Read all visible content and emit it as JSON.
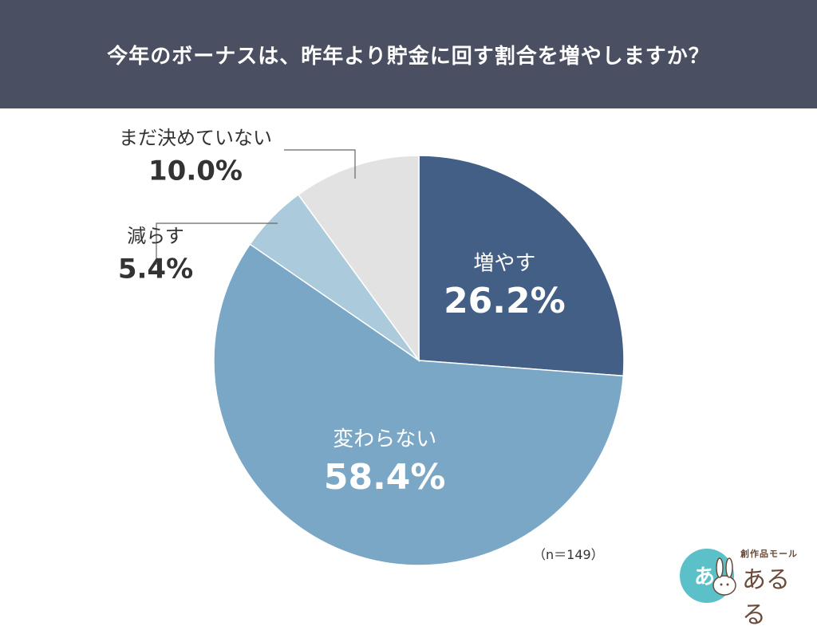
{
  "title": "今年のボーナスは、昨年より貯金に回す割合を増やしますか？",
  "sample_size": "（n＝149）",
  "chart_data": {
    "type": "pie",
    "title": "今年のボーナスは、昨年より貯金に回す割合を増やしますか？",
    "start": "12 o'clock",
    "direction": "clockwise",
    "slices": [
      {
        "label": "増やす",
        "value": 26.2,
        "value_text": "26.2%",
        "color": "#445f86",
        "text_color": "#ffffff"
      },
      {
        "label": "変わらない",
        "value": 58.4,
        "value_text": "58.4%",
        "color": "#7ba7c7",
        "text_color": "#ffffff"
      },
      {
        "label": "減らす",
        "value": 5.4,
        "value_text": "5.4%",
        "color": "#abcbdc",
        "text_color": "#333333"
      },
      {
        "label": "まだ決めていない",
        "value": 10.0,
        "value_text": "10.0%",
        "color": "#e2e2e2",
        "text_color": "#333333"
      }
    ]
  },
  "logo": {
    "brand": "創作品モール",
    "name": "あるる",
    "colors": {
      "circle": "#5bc0c8",
      "text": "#6b4a3a"
    }
  }
}
